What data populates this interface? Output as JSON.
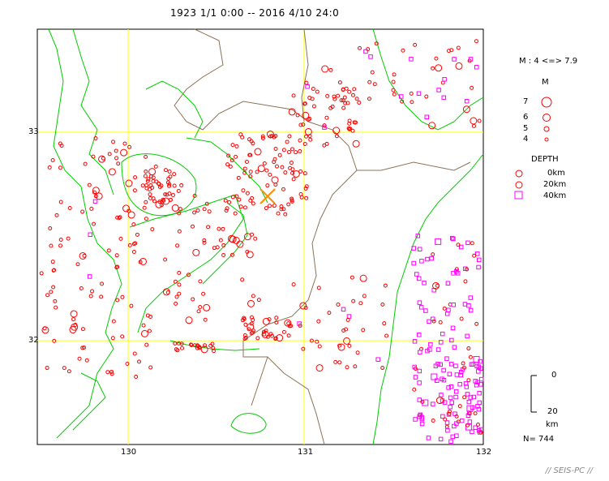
{
  "title": "1923 1/1 0:00 -- 2016 4/10 24:0",
  "axes": {
    "lon_ticks": [
      "130",
      "131",
      "132"
    ],
    "lat_ticks": [
      "33",
      "32"
    ]
  },
  "legend": {
    "mag_range": "M : 4 <=> 7.9",
    "mag_header": "M",
    "mag_levels": [
      "7",
      "6",
      "5",
      "4"
    ],
    "depth_header": "DEPTH",
    "depth_levels": [
      "0km",
      "20km",
      "40km"
    ],
    "scale_top": "0",
    "scale_bottom": "20",
    "scale_unit": "km"
  },
  "count": "N= 744",
  "credit": "// SEIS-PC //",
  "colors": {
    "frame": "#000000",
    "grid": "#ffff00",
    "coast": "#00cc00",
    "boundary": "#8b7355",
    "shallow": "#ff0000",
    "deep": "#ff00ff",
    "epicenter": "#ff8c00"
  }
}
